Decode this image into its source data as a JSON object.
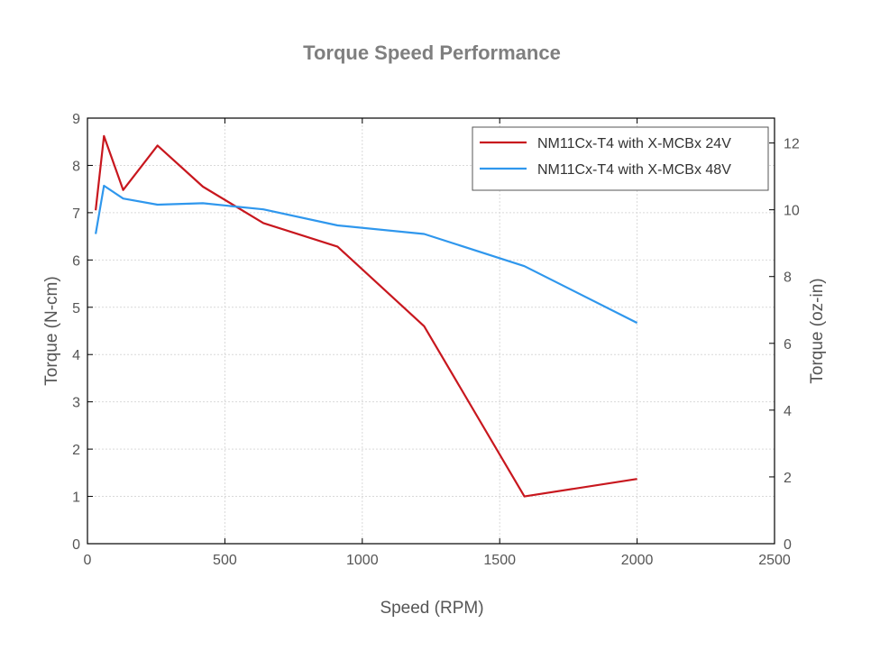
{
  "chart_data": {
    "type": "line",
    "title": "Torque Speed Performance",
    "xlabel": "Speed (RPM)",
    "ylabel": "Torque (N-cm)",
    "ylabel_right": "Torque (oz-in)",
    "xlim": [
      0,
      2500
    ],
    "ylim": [
      0,
      9
    ],
    "ylim_right": [
      0,
      12.745
    ],
    "x_ticks": [
      0,
      500,
      1000,
      1500,
      2000,
      2500
    ],
    "y_ticks": [
      0,
      1,
      2,
      3,
      4,
      5,
      6,
      7,
      8,
      9
    ],
    "y_ticks_right": [
      0,
      2,
      4,
      6,
      8,
      10,
      12
    ],
    "grid": true,
    "legend_position": "top-right",
    "series": [
      {
        "name": "NM11Cx-T4 with X-MCBx 24V",
        "color": "#c8171e",
        "x": [
          30,
          60,
          130,
          255,
          420,
          640,
          910,
          1225,
          1590,
          2000
        ],
        "y": [
          7.05,
          8.62,
          7.48,
          8.42,
          7.55,
          6.78,
          6.28,
          4.6,
          1.0,
          1.37
        ]
      },
      {
        "name": "NM11Cx-T4 with X-MCBx 48V",
        "color": "#2f97ed",
        "x": [
          30,
          60,
          130,
          255,
          420,
          640,
          910,
          1225,
          1590,
          2000
        ],
        "y": [
          6.55,
          7.57,
          7.3,
          7.17,
          7.2,
          7.07,
          6.73,
          6.55,
          5.87,
          4.67
        ]
      }
    ]
  }
}
